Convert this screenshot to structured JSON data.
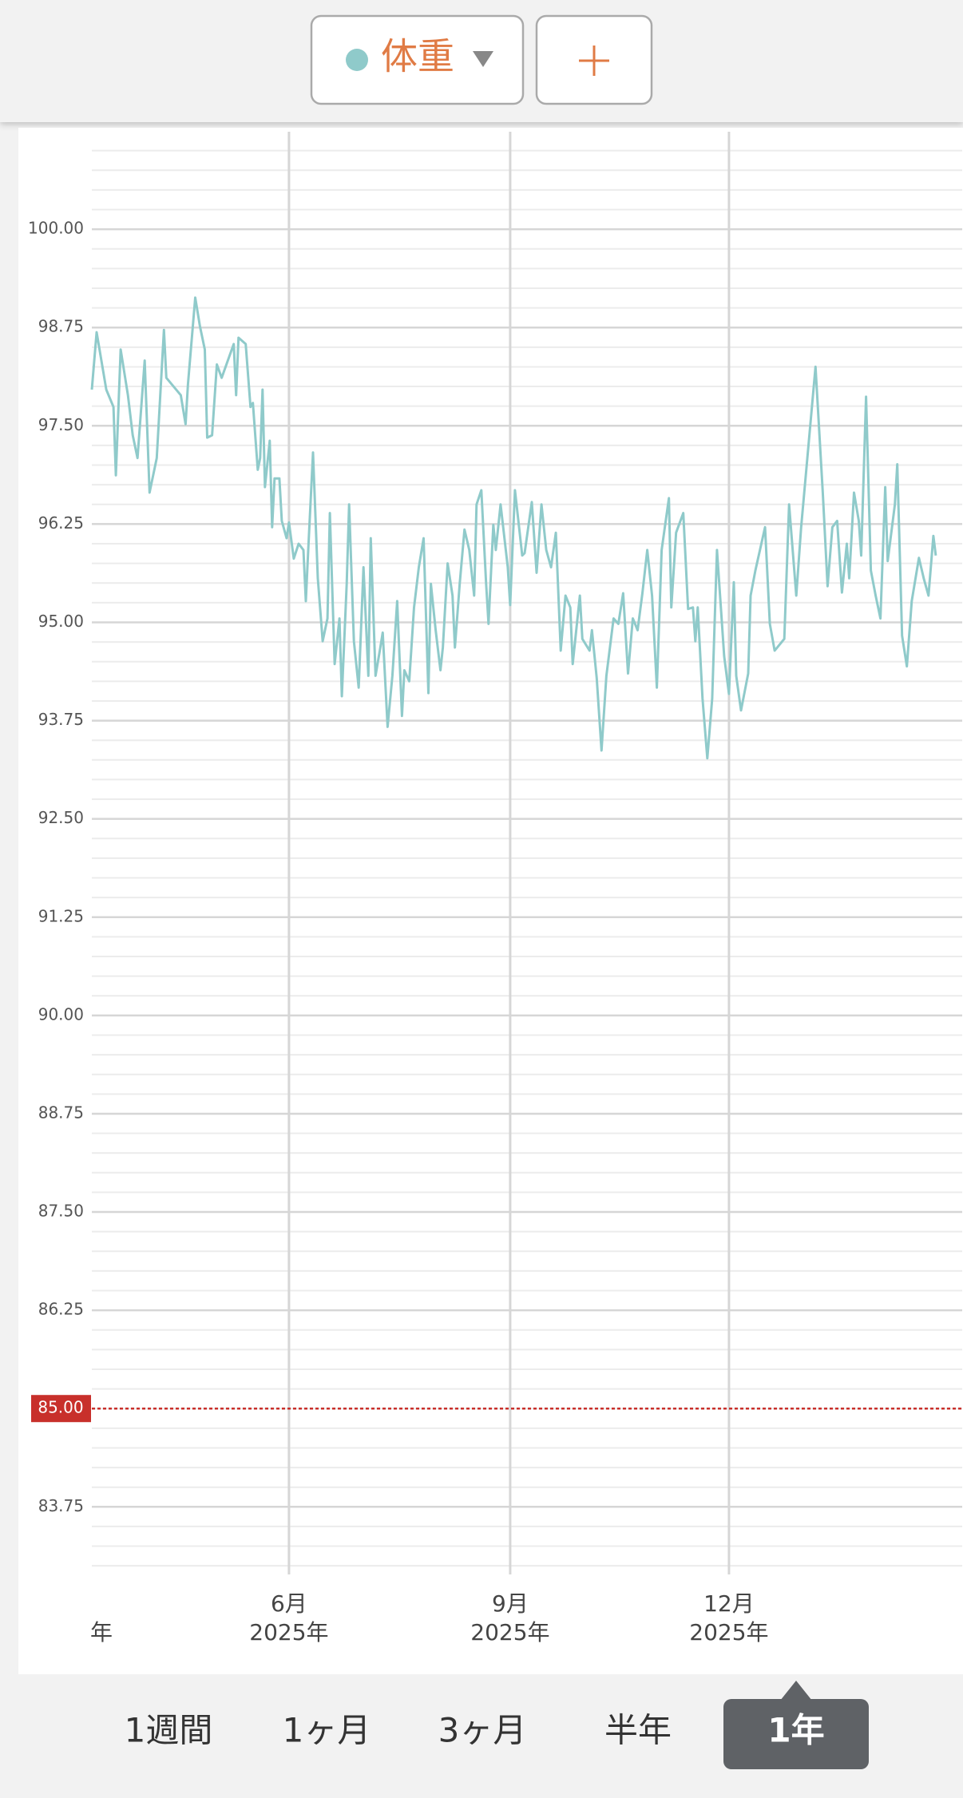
{
  "chart_data": {
    "type": "line",
    "series": [
      {
        "name": "体重",
        "color": "#8fcaca",
        "x": [
          0,
          2,
          6,
          9,
          10,
          12,
          15,
          17,
          19,
          22,
          24,
          27,
          30,
          31,
          37,
          39,
          40,
          43,
          45,
          47,
          48,
          50,
          52,
          54,
          59,
          60,
          61,
          64,
          66,
          67,
          69,
          70,
          71,
          72,
          74,
          75,
          76,
          78,
          79,
          81,
          82,
          84,
          86,
          88,
          89,
          90,
          92,
          94,
          96,
          98,
          99,
          101,
          103,
          104,
          106,
          107,
          109,
          111,
          113,
          115,
          116,
          118,
          120,
          121,
          123,
          125,
          127,
          129,
          130,
          132,
          134,
          136,
          138,
          140,
          141,
          143,
          145,
          146,
          148,
          150,
          151,
          153,
          155,
          157,
          159,
          160,
          162,
          164,
          165,
          167,
          168,
          170,
          173,
          174,
          176,
          179,
          180,
          183,
          185,
          187,
          189,
          191,
          193,
          195,
          197,
          199,
          200,
          203,
          204,
          207,
          208,
          210,
          212,
          214,
          217,
          219,
          221,
          223,
          225,
          227,
          229,
          231,
          233,
          235,
          237,
          240,
          241,
          243,
          246,
          248,
          250,
          251,
          252,
          254,
          256,
          258,
          260,
          263,
          265,
          267,
          268,
          270,
          273,
          274,
          276,
          280,
          282,
          284,
          288,
          290,
          293,
          295,
          301,
          304,
          306,
          308,
          310,
          312,
          314,
          315,
          317,
          319,
          320,
          322,
          324,
          326,
          328,
          330,
          331,
          334,
          335,
          337,
          339,
          341,
          344,
          346,
          348,
          350,
          351
        ],
        "values": [
          97.96,
          98.69,
          97.96,
          97.74,
          96.87,
          98.47,
          97.89,
          97.38,
          97.09,
          98.33,
          96.65,
          97.09,
          98.72,
          98.11,
          97.89,
          97.52,
          98.03,
          99.13,
          98.76,
          98.47,
          97.35,
          97.38,
          98.28,
          98.11,
          98.54,
          97.89,
          98.62,
          98.54,
          97.74,
          97.79,
          96.94,
          97.09,
          97.96,
          96.72,
          97.31,
          96.21,
          96.83,
          96.83,
          96.29,
          96.07,
          96.27,
          95.81,
          96.0,
          95.92,
          95.27,
          95.92,
          97.16,
          95.56,
          94.76,
          95.05,
          96.39,
          94.47,
          95.05,
          94.06,
          95.49,
          96.5,
          94.76,
          94.17,
          95.7,
          94.32,
          96.07,
          94.32,
          94.68,
          94.87,
          93.67,
          94.32,
          95.27,
          93.81,
          94.39,
          94.25,
          95.19,
          95.7,
          96.07,
          94.1,
          95.49,
          94.9,
          94.39,
          94.68,
          95.75,
          95.34,
          94.68,
          95.49,
          96.18,
          95.92,
          95.34,
          96.5,
          96.68,
          95.49,
          94.98,
          96.24,
          95.92,
          96.5,
          95.7,
          95.22,
          96.68,
          95.85,
          95.88,
          96.53,
          95.63,
          96.5,
          95.92,
          95.7,
          96.14,
          94.64,
          95.34,
          95.19,
          94.47,
          95.34,
          94.79,
          94.64,
          94.9,
          94.29,
          93.37,
          94.32,
          95.05,
          94.98,
          95.37,
          94.35,
          95.05,
          94.9,
          95.37,
          95.92,
          95.34,
          94.17,
          95.92,
          96.58,
          95.19,
          96.14,
          96.39,
          95.17,
          95.19,
          94.76,
          95.19,
          94.03,
          93.27,
          94.03,
          95.92,
          94.57,
          94.09,
          95.51,
          94.32,
          93.88,
          94.35,
          95.34,
          95.66,
          96.21,
          94.98,
          94.64,
          94.79,
          96.5,
          95.34,
          96.21,
          98.25,
          96.65,
          95.46,
          96.21,
          96.29,
          95.38,
          96.0,
          95.56,
          96.65,
          96.29,
          95.85,
          97.87,
          95.66,
          95.34,
          95.05,
          96.72,
          95.78,
          96.5,
          97.01,
          94.83,
          94.44,
          95.27,
          95.82,
          95.56,
          95.34,
          96.1,
          95.85
        ]
      }
    ],
    "xlim": [
      0,
      362
    ],
    "xticks": [
      {
        "value": 82,
        "label": "6月",
        "year": "2025年"
      },
      {
        "value": 174,
        "label": "9月",
        "year": "2025年"
      },
      {
        "value": 265,
        "label": "12月",
        "year": "2025年"
      }
    ],
    "clipped_x_label": "年",
    "ylim": [
      82.89,
      101.24
    ],
    "yticks": [
      {
        "value": 83.75,
        "label": "83.75"
      },
      {
        "value": 86.25,
        "label": "86.25"
      },
      {
        "value": 87.5,
        "label": "87.50"
      },
      {
        "value": 88.75,
        "label": "88.75"
      },
      {
        "value": 90,
        "label": "90.00"
      },
      {
        "value": 91.25,
        "label": "91.25"
      },
      {
        "value": 92.5,
        "label": "92.50"
      },
      {
        "value": 93.75,
        "label": "93.75"
      },
      {
        "value": 95,
        "label": "95.00"
      },
      {
        "value": 96.25,
        "label": "96.25"
      },
      {
        "value": 97.5,
        "label": "97.50"
      },
      {
        "value": 98.75,
        "label": "98.75"
      },
      {
        "value": 100,
        "label": "100.00"
      }
    ],
    "minor_grid_step": 0.25,
    "goal": {
      "value": 85,
      "label": "85.00",
      "color": "#c8302b"
    },
    "grid": true
  },
  "period_tabs": {
    "options": [
      "1週間",
      "1ヶ月",
      "3ヶ月",
      "半年",
      "1年"
    ],
    "selected": 4
  }
}
